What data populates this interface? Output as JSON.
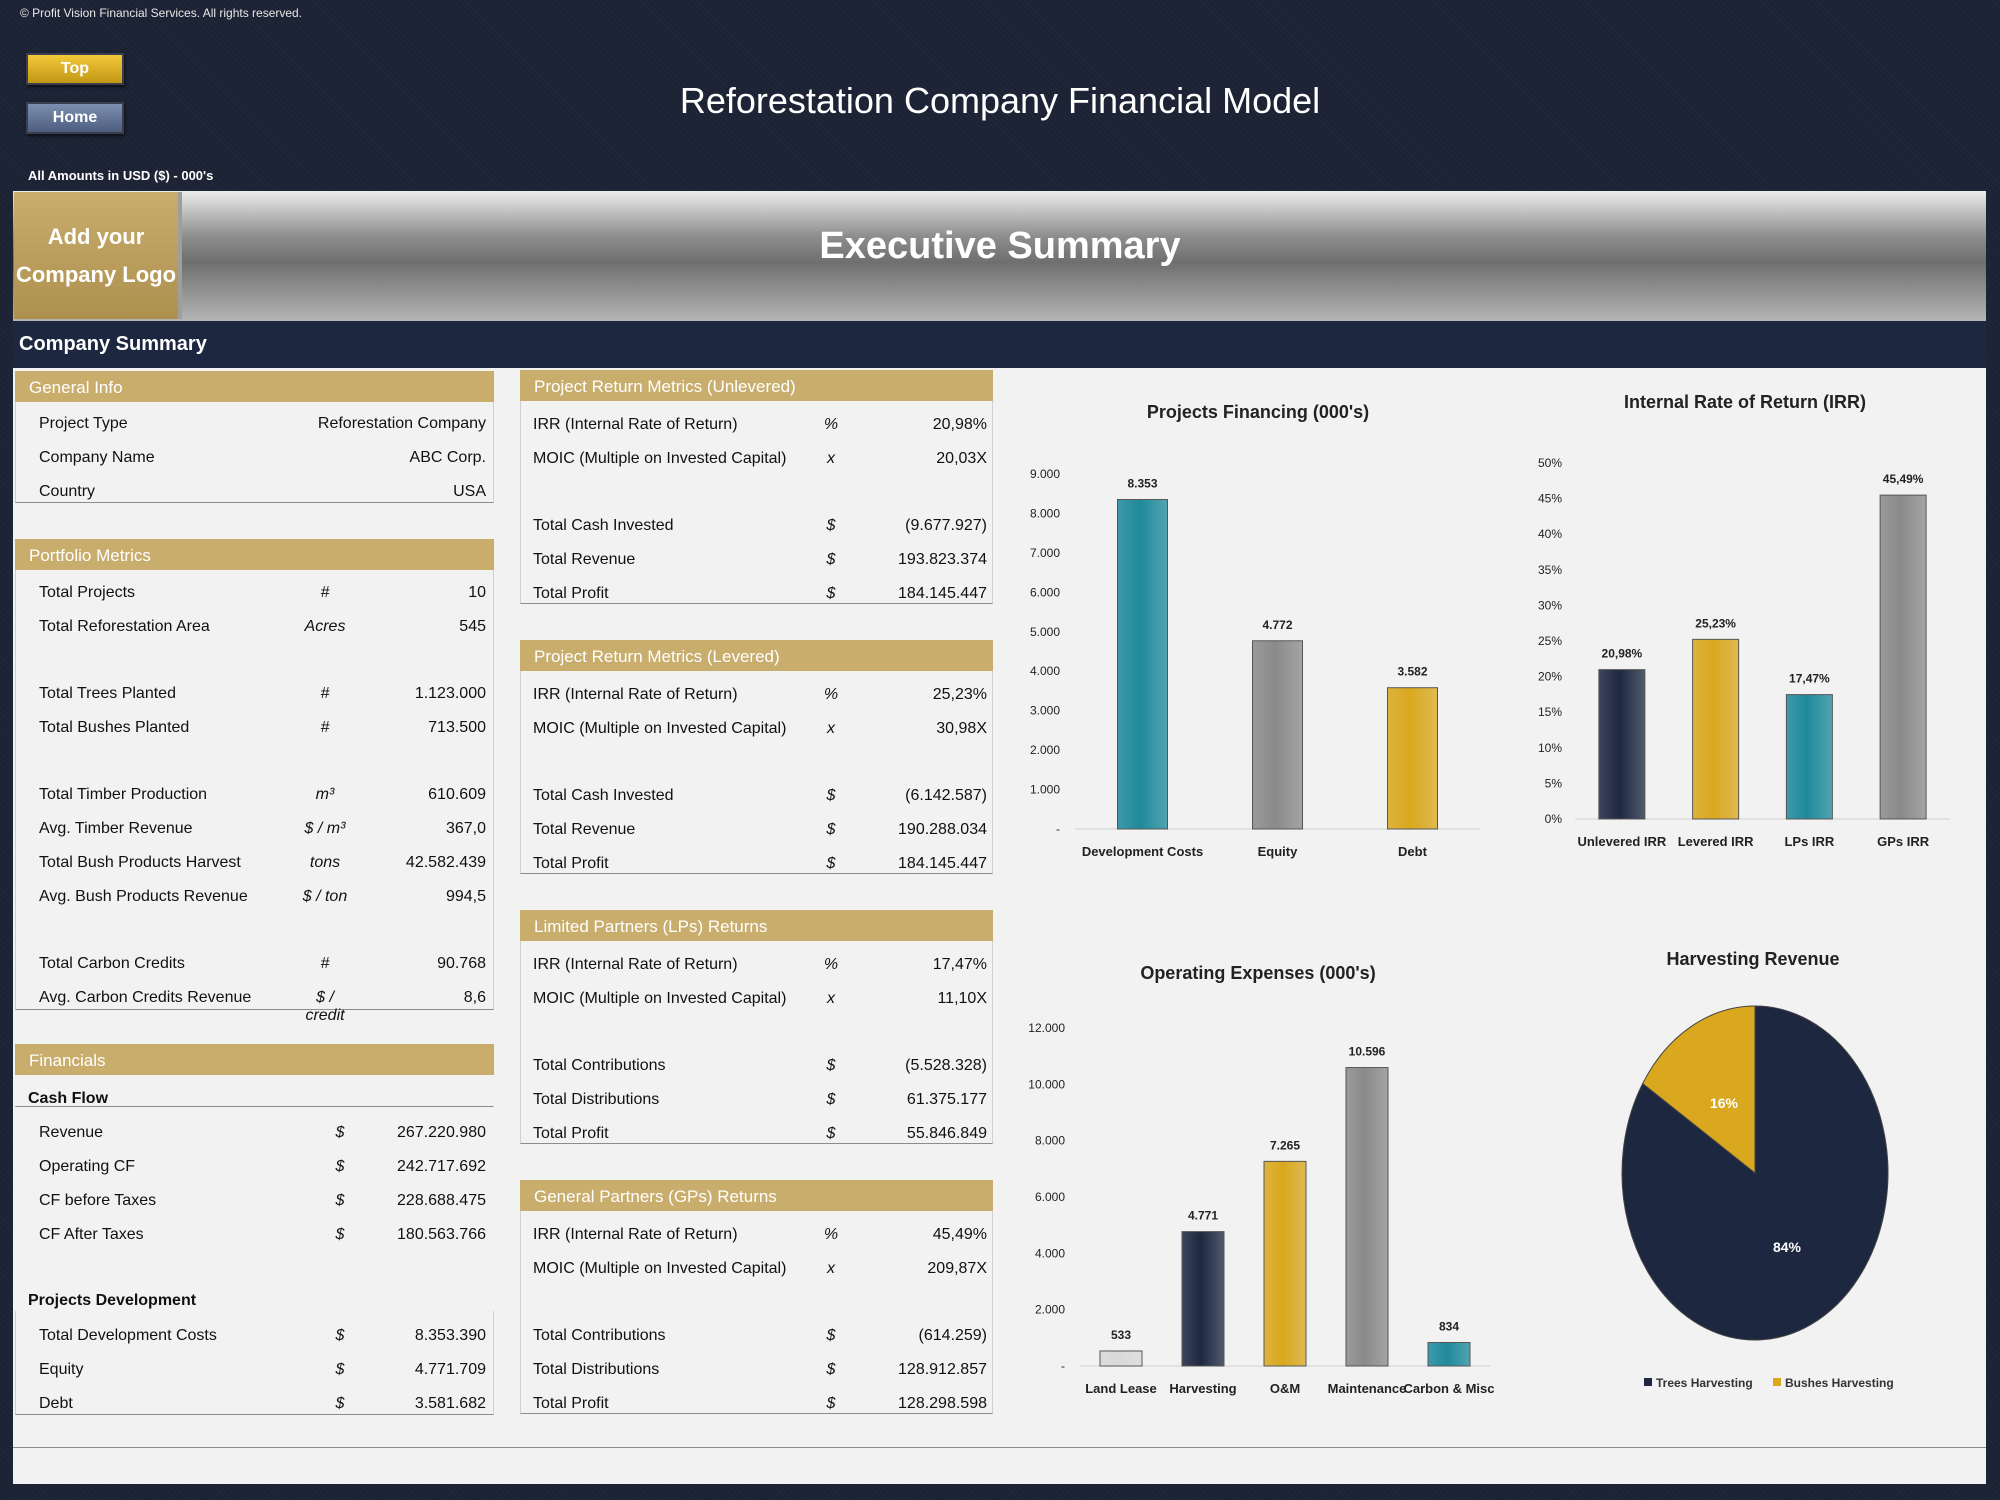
{
  "copyright": "© Profit Vision Financial Services. All rights reserved.",
  "nav": {
    "top_label": "Top",
    "home_label": "Home"
  },
  "title": "Reforestation Company Financial Model",
  "amounts_note": "All Amounts in  USD ($) - 000's",
  "logo_placeholder": {
    "line1": "Add your",
    "line2": "Company Logo"
  },
  "executive_summary": "Executive Summary",
  "company_summary": "Company Summary",
  "general_info": {
    "header": "General Info",
    "rows": [
      {
        "label": "Project Type",
        "unit": "",
        "value": "Reforestation Company"
      },
      {
        "label": "Company Name",
        "unit": "",
        "value": "ABC Corp."
      },
      {
        "label": "Country",
        "unit": "",
        "value": "USA"
      }
    ]
  },
  "portfolio_metrics": {
    "header": "Portfolio Metrics",
    "rows": [
      {
        "label": "Total Projects",
        "unit": "#",
        "value": "10"
      },
      {
        "label": "Total Reforestation Area",
        "unit": "Acres",
        "value": "545"
      },
      {
        "label": "Total Trees Planted",
        "unit": "#",
        "value": "1.123.000"
      },
      {
        "label": "Total Bushes Planted",
        "unit": "#",
        "value": "713.500"
      },
      {
        "label": "Total Timber Production",
        "unit": "m³",
        "value": "610.609"
      },
      {
        "label": "Avg. Timber Revenue",
        "unit": "$ / m³",
        "value": "367,0"
      },
      {
        "label": "Total Bush Products Harvest",
        "unit": "tons",
        "value": "42.582.439"
      },
      {
        "label": "Avg. Bush Products Revenue",
        "unit": "$ / ton",
        "value": "994,5"
      },
      {
        "label": "Total Carbon Credits",
        "unit": "#",
        "value": "90.768"
      },
      {
        "label": "Avg. Carbon Credits Revenue",
        "unit": "$ / credit",
        "value": "8,6"
      }
    ]
  },
  "financials": {
    "header": "Financials",
    "cash_flow_label": "Cash Flow",
    "cash_flow": [
      {
        "label": "Revenue",
        "unit": "$",
        "value": "267.220.980"
      },
      {
        "label": "Operating CF",
        "unit": "$",
        "value": "242.717.692"
      },
      {
        "label": "CF before Taxes",
        "unit": "$",
        "value": "228.688.475"
      },
      {
        "label": "CF After Taxes",
        "unit": "$",
        "value": "180.563.766"
      }
    ],
    "projects_dev_label": "Projects Development",
    "projects_dev": [
      {
        "label": "Total Development Costs",
        "unit": "$",
        "value": "8.353.390"
      },
      {
        "label": "Equity",
        "unit": "$",
        "value": "4.771.709"
      },
      {
        "label": "Debt",
        "unit": "$",
        "value": "3.581.682"
      }
    ]
  },
  "unlevered": {
    "header": "Project Return Metrics (Unlevered)",
    "rows": [
      {
        "label": "IRR (Internal Rate of Return)",
        "unit": "%",
        "value": "20,98%"
      },
      {
        "label": "MOIC (Multiple on Invested Capital)",
        "unit": "x",
        "value": "20,03X"
      },
      {
        "label": "Total Cash Invested",
        "unit": "$",
        "value": "(9.677.927)"
      },
      {
        "label": "Total Revenue",
        "unit": "$",
        "value": "193.823.374"
      },
      {
        "label": "Total Profit",
        "unit": "$",
        "value": "184.145.447"
      }
    ]
  },
  "levered": {
    "header": "Project Return Metrics (Levered)",
    "rows": [
      {
        "label": "IRR (Internal Rate of Return)",
        "unit": "%",
        "value": "25,23%"
      },
      {
        "label": "MOIC (Multiple on Invested Capital)",
        "unit": "x",
        "value": "30,98X"
      },
      {
        "label": "Total Cash Invested",
        "unit": "$",
        "value": "(6.142.587)"
      },
      {
        "label": "Total Revenue",
        "unit": "$",
        "value": "190.288.034"
      },
      {
        "label": "Total Profit",
        "unit": "$",
        "value": "184.145.447"
      }
    ]
  },
  "lps": {
    "header": "Limited Partners (LPs) Returns",
    "rows": [
      {
        "label": "IRR (Internal Rate of Return)",
        "unit": "%",
        "value": "17,47%"
      },
      {
        "label": "MOIC (Multiple on Invested Capital)",
        "unit": "x",
        "value": "11,10X"
      },
      {
        "label": "Total Contributions",
        "unit": "$",
        "value": "(5.528.328)"
      },
      {
        "label": "Total Distributions",
        "unit": "$",
        "value": "61.375.177"
      },
      {
        "label": "Total Profit",
        "unit": "$",
        "value": "55.846.849"
      }
    ]
  },
  "gps": {
    "header": "General Partners (GPs) Returns",
    "rows": [
      {
        "label": "IRR (Internal Rate of Return)",
        "unit": "%",
        "value": "45,49%"
      },
      {
        "label": "MOIC (Multiple on Invested Capital)",
        "unit": "x",
        "value": "209,87X"
      },
      {
        "label": "Total Contributions",
        "unit": "$",
        "value": "(614.259)"
      },
      {
        "label": "Total Distributions",
        "unit": "$",
        "value": "128.912.857"
      },
      {
        "label": "Total Profit",
        "unit": "$",
        "value": "128.298.598"
      }
    ]
  },
  "chart_data": [
    {
      "type": "bar",
      "title": "Projects Financing (000's)",
      "categories": [
        "Development Costs",
        "Equity",
        "Debt"
      ],
      "values": [
        8353,
        4772,
        3582
      ],
      "value_labels": [
        "8.353",
        "4.772",
        "3.582"
      ],
      "colors": [
        "#1e8a9c",
        "#8a8a8a",
        "#d9a81e"
      ],
      "ylim": [
        0,
        9000
      ],
      "yticks": [
        0,
        1000,
        2000,
        3000,
        4000,
        5000,
        6000,
        7000,
        8000,
        9000
      ],
      "ytick_labels": [
        "-",
        "1.000",
        "2.000",
        "3.000",
        "4.000",
        "5.000",
        "6.000",
        "7.000",
        "8.000",
        "9.000"
      ]
    },
    {
      "type": "bar",
      "title": "Internal Rate of Return (IRR)",
      "categories": [
        "Unlevered IRR",
        "Levered IRR",
        "LPs IRR",
        "GPs IRR"
      ],
      "values": [
        20.98,
        25.23,
        17.47,
        45.49
      ],
      "value_labels": [
        "20,98%",
        "25,23%",
        "17,47%",
        "45,49%"
      ],
      "colors": [
        "#1d2740",
        "#d9a81e",
        "#1e8a9c",
        "#8a8a8a"
      ],
      "ylim": [
        0,
        50
      ],
      "yticks": [
        0,
        5,
        10,
        15,
        20,
        25,
        30,
        35,
        40,
        45,
        50
      ],
      "ytick_labels": [
        "0%",
        "5%",
        "10%",
        "15%",
        "20%",
        "25%",
        "30%",
        "35%",
        "40%",
        "45%",
        "50%"
      ]
    },
    {
      "type": "bar",
      "title": "Operating Expenses (000's)",
      "categories": [
        "Land Lease",
        "Harvesting",
        "O&M",
        "Maintenance",
        "Carbon & Misc"
      ],
      "values": [
        533,
        4771,
        7265,
        10596,
        834
      ],
      "value_labels": [
        "533",
        "4.771",
        "7.265",
        "10.596",
        "834"
      ],
      "colors": [
        "#d9d9d9",
        "#1d2740",
        "#d9a81e",
        "#8a8a8a",
        "#1e8a9c"
      ],
      "ylim": [
        0,
        12000
      ],
      "yticks": [
        0,
        2000,
        4000,
        6000,
        8000,
        10000,
        12000
      ],
      "ytick_labels": [
        "-",
        "2.000",
        "4.000",
        "6.000",
        "8.000",
        "10.000",
        "12.000"
      ]
    },
    {
      "type": "pie",
      "title": "Harvesting Revenue",
      "slices": [
        {
          "name": "Trees Harvesting",
          "value": 84,
          "label": "84%",
          "color": "#1d2740"
        },
        {
          "name": "Bushes Harvesting",
          "value": 16,
          "label": "16%",
          "color": "#d9a81e"
        }
      ]
    }
  ]
}
